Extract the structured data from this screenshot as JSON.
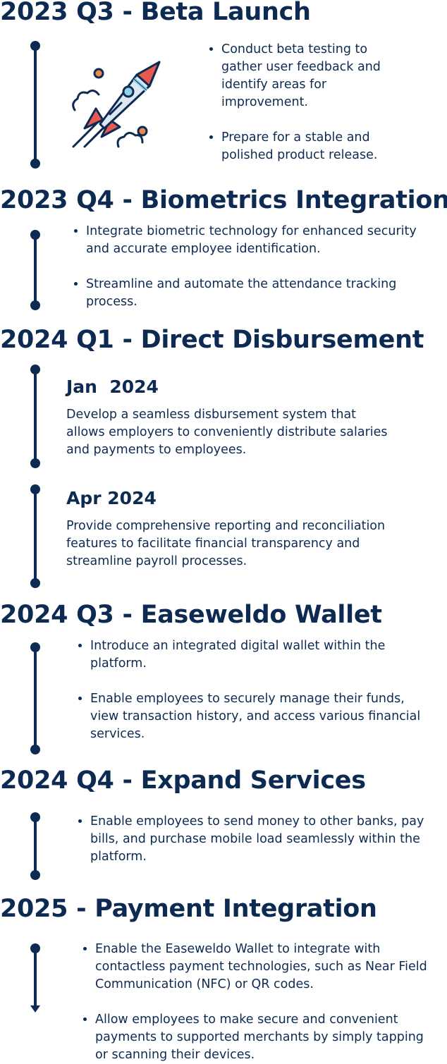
{
  "sections": [
    {
      "title": "2023 Q3 - Beta Launch",
      "bullets": [
        "Conduct beta testing to gather user feedback and identify areas for improvement.",
        "Prepare for a stable and polished product release."
      ]
    },
    {
      "title": "2023 Q4 - Biometrics Integration",
      "bullets": [
        "Integrate biometric technology for enhanced security and accurate employee identification.",
        "Streamline and automate the attendance tracking process."
      ]
    },
    {
      "title": "2024 Q1 - Direct Disbursement",
      "entries": [
        {
          "date": "Jan  2024",
          "description": "Develop a seamless disbursement system that allows employers to conveniently distribute salaries and payments to employees."
        },
        {
          "date": "Apr 2024",
          "description": "Provide comprehensive reporting and reconciliation features to facilitate financial transparency and streamline payroll processes."
        }
      ]
    },
    {
      "title": "2024 Q3 - Easeweldo Wallet",
      "bullets": [
        "Introduce an integrated digital wallet within the platform.",
        "Enable employees to securely manage their funds, view transaction history, and access various financial services."
      ]
    },
    {
      "title": "2024 Q4 - Expand Services",
      "bullets": [
        "Enable employees to send money to other banks, pay bills, and purchase mobile load seamlessly within the platform."
      ]
    },
    {
      "title": "2025 - Payment Integration",
      "bullets": [
        "Enable the Easeweldo Wallet to integrate with contactless payment technologies, such as Near Field Communication (NFC) or QR codes.",
        "Allow employees to make secure and convenient payments to supported merchants by simply tapping or scanning their devices."
      ]
    }
  ],
  "icons": {
    "rocket": "rocket-icon"
  },
  "colors": {
    "navy": "#0d2b52",
    "rocket_red": "#e85a4f",
    "rocket_body": "#dde6f3",
    "rocket_window": "#8fd3e8"
  }
}
